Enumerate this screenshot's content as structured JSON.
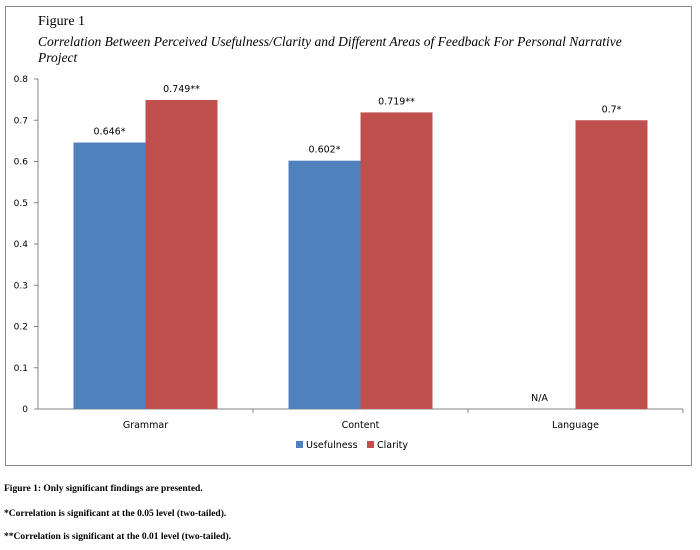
{
  "figure": {
    "label": "Figure 1",
    "title": "Correlation Between Perceived Usefulness/Clarity and Different Areas of Feedback For Personal Narrative Project"
  },
  "notes": [
    "Figure 1: Only significant findings are presented.",
    "*Correlation is significant at the 0.05 level (two-tailed).",
    "**Correlation is significant at the 0.01 level (two-tailed)."
  ],
  "chart_data": {
    "type": "bar",
    "categories": [
      "Grammar",
      "Content",
      "Language"
    ],
    "series": [
      {
        "name": "Usefulness",
        "color": "#4f81bd",
        "values": [
          0.646,
          0.602,
          null
        ],
        "labels": [
          "0.646*",
          "0.602*",
          "N/A"
        ]
      },
      {
        "name": "Clarity",
        "color": "#c0504d",
        "values": [
          0.749,
          0.719,
          0.7
        ],
        "labels": [
          "0.749**",
          "0.719**",
          "0.7*"
        ]
      }
    ],
    "ylim": [
      0,
      0.8
    ],
    "yticks": [
      "0",
      "0.1",
      "0.2",
      "0.3",
      "0.4",
      "0.5",
      "0.6",
      "0.7",
      "0.8"
    ],
    "grid": false,
    "legend": "bottom-center"
  }
}
